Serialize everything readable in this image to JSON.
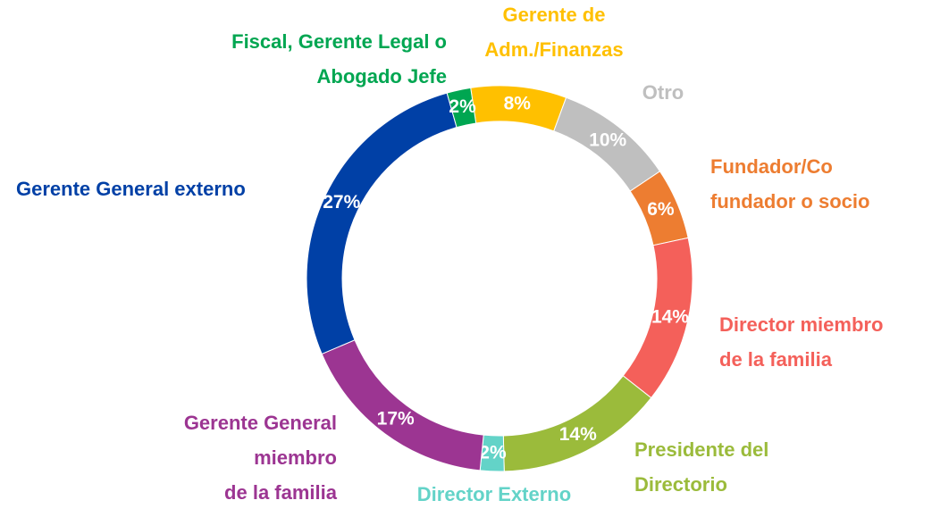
{
  "chart_data": {
    "type": "donut",
    "categories": [
      "Gerente de Adm./Finanzas",
      "Otro",
      "Fundador/Co fundador o socio",
      "Director miembro de la familia",
      "Presidente del Directorio",
      "Director Externo",
      "Gerente General miembro de la familia",
      "Gerente General externo",
      "Fiscal, Gerente Legal o Abogado Jefe"
    ],
    "values": [
      8,
      10,
      6,
      14,
      14,
      2,
      17,
      27,
      2
    ],
    "value_labels": [
      "8%",
      "10%",
      "6%",
      "14%",
      "14%",
      "2%",
      "17%",
      "27%",
      "2%"
    ],
    "colors": [
      "#FFC000",
      "#BFBFBF",
      "#ED7D31",
      "#F4605A",
      "#9BBB3B",
      "#63D3C8",
      "#9C3592",
      "#0040A6",
      "#00A651"
    ]
  }
}
